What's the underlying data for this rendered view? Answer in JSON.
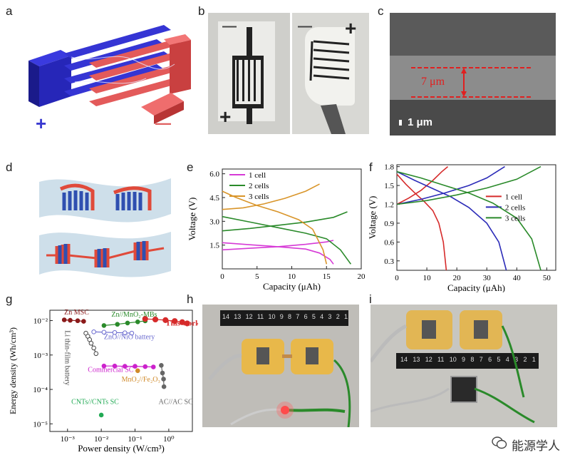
{
  "panel_labels": {
    "a": "a",
    "b": "b",
    "c": "c",
    "d": "d",
    "e": "e",
    "f": "f",
    "g": "g",
    "h": "h",
    "i": "i"
  },
  "panel_a": {
    "plus": "+",
    "minus": "—"
  },
  "panel_b": {
    "left_minus": "—",
    "left_plus": "+",
    "right_minus": "—",
    "right_plus": "+"
  },
  "panel_c": {
    "thickness": "7 μm",
    "scale_bar": "1 μm"
  },
  "panel_h": {
    "ruler_numbers": [
      "14",
      "13",
      "12",
      "11",
      "10",
      "9",
      "8",
      "7",
      "6",
      "5",
      "4",
      "3",
      "2",
      "1"
    ]
  },
  "panel_i": {
    "ruler_numbers": [
      "14",
      "13",
      "12",
      "11",
      "10",
      "9",
      "8",
      "7",
      "6",
      "5",
      "4",
      "3",
      "2",
      "1"
    ]
  },
  "chart_data": [
    {
      "id": "e",
      "type": "line",
      "xlabel": "Capacity (μAh)",
      "ylabel": "Voltage (V)",
      "xlim": [
        0,
        20
      ],
      "ylim": [
        0,
        6.3
      ],
      "xticks": [
        "0",
        "5",
        "10",
        "15",
        "20"
      ],
      "yticks": [
        "1.5",
        "3.0",
        "4.5",
        "6.0"
      ],
      "legend": "top-left",
      "series": [
        {
          "name": "1 cell",
          "color": "#d63ad6",
          "charge": [
            [
              0,
              1.2
            ],
            [
              4,
              1.3
            ],
            [
              8,
              1.4
            ],
            [
              12,
              1.55
            ],
            [
              15,
              1.7
            ],
            [
              16,
              1.8
            ]
          ],
          "discharge": [
            [
              0,
              1.65
            ],
            [
              4,
              1.52
            ],
            [
              8,
              1.4
            ],
            [
              12,
              1.25
            ],
            [
              14,
              1.0
            ],
            [
              15.5,
              0.6
            ],
            [
              16,
              0.3
            ]
          ]
        },
        {
          "name": "2 cells",
          "color": "#2a8a2a",
          "charge": [
            [
              0,
              2.4
            ],
            [
              4,
              2.55
            ],
            [
              8,
              2.75
            ],
            [
              12,
              2.95
            ],
            [
              16,
              3.25
            ],
            [
              18,
              3.6
            ]
          ],
          "discharge": [
            [
              0,
              3.3
            ],
            [
              4,
              2.95
            ],
            [
              8,
              2.6
            ],
            [
              12,
              2.25
            ],
            [
              15,
              1.9
            ],
            [
              17,
              1.2
            ],
            [
              18.5,
              0.3
            ]
          ]
        },
        {
          "name": "3 cells",
          "color": "#d9952a",
          "charge": [
            [
              0,
              3.75
            ],
            [
              3,
              3.85
            ],
            [
              6,
              4.1
            ],
            [
              9,
              4.45
            ],
            [
              12,
              4.9
            ],
            [
              14,
              5.35
            ]
          ],
          "discharge": [
            [
              0,
              4.9
            ],
            [
              2,
              4.5
            ],
            [
              5,
              4.0
            ],
            [
              8,
              3.6
            ],
            [
              11,
              3.1
            ],
            [
              13,
              2.5
            ],
            [
              14.5,
              1.2
            ],
            [
              15,
              0.3
            ]
          ]
        }
      ]
    },
    {
      "id": "f",
      "type": "line",
      "xlabel": "Capacity (μAh)",
      "ylabel": "Voltage (V)",
      "xlim": [
        0,
        53
      ],
      "ylim": [
        0.15,
        1.83
      ],
      "xticks": [
        "0",
        "10",
        "20",
        "30",
        "40",
        "50"
      ],
      "yticks": [
        "0.3",
        "0.6",
        "0.9",
        "1.2",
        "1.5",
        "1.8"
      ],
      "legend": "right",
      "series": [
        {
          "name": "1 cell",
          "color": "#d62b2b",
          "charge": [
            [
              0,
              1.2
            ],
            [
              4,
              1.3
            ],
            [
              8,
              1.42
            ],
            [
              12,
              1.58
            ],
            [
              15,
              1.72
            ],
            [
              17,
              1.8
            ]
          ],
          "discharge": [
            [
              0,
              1.68
            ],
            [
              3,
              1.52
            ],
            [
              6,
              1.38
            ],
            [
              9,
              1.25
            ],
            [
              12,
              1.1
            ],
            [
              14,
              0.9
            ],
            [
              15.5,
              0.6
            ],
            [
              16.5,
              0.15
            ]
          ]
        },
        {
          "name": "2 cells",
          "color": "#2b2bb8",
          "charge": [
            [
              0,
              1.2
            ],
            [
              8,
              1.28
            ],
            [
              16,
              1.38
            ],
            [
              24,
              1.5
            ],
            [
              30,
              1.62
            ],
            [
              36,
              1.8
            ]
          ],
          "discharge": [
            [
              0,
              1.72
            ],
            [
              6,
              1.58
            ],
            [
              12,
              1.45
            ],
            [
              18,
              1.32
            ],
            [
              24,
              1.15
            ],
            [
              30,
              0.9
            ],
            [
              34,
              0.6
            ],
            [
              36.5,
              0.15
            ]
          ]
        },
        {
          "name": "3 cells",
          "color": "#2a8a2a",
          "charge": [
            [
              0,
              1.2
            ],
            [
              10,
              1.26
            ],
            [
              20,
              1.35
            ],
            [
              30,
              1.46
            ],
            [
              40,
              1.6
            ],
            [
              48,
              1.8
            ]
          ],
          "discharge": [
            [
              0,
              1.72
            ],
            [
              8,
              1.62
            ],
            [
              16,
              1.5
            ],
            [
              24,
              1.38
            ],
            [
              32,
              1.22
            ],
            [
              40,
              0.98
            ],
            [
              45,
              0.65
            ],
            [
              48,
              0.15
            ]
          ]
        }
      ]
    },
    {
      "id": "g",
      "type": "scatter",
      "xlabel": "Power density (W/cm³)",
      "ylabel": "Energy density (Wh/cm³)",
      "xscale": "log",
      "yscale": "log",
      "xlim": [
        0.0003,
        5
      ],
      "ylim": [
        6e-06,
        0.02
      ],
      "xticks": [
        "10⁻³",
        "10⁻²",
        "10⁻¹",
        "10⁰"
      ],
      "yticks": [
        "10⁻⁵",
        "10⁻⁴",
        "10⁻³",
        "10⁻²"
      ],
      "series": [
        {
          "name": "Zn MSC",
          "color": "#8b1a1a",
          "x": [
            0.0008,
            0.0012,
            0.002,
            0.003
          ],
          "y": [
            0.0105,
            0.0102,
            0.0099,
            0.0095
          ]
        },
        {
          "name": "Zn//MnO₂-MBs",
          "color": "#2a8a2a",
          "x": [
            0.012,
            0.03,
            0.06,
            0.12,
            0.2
          ],
          "y": [
            0.0072,
            0.0078,
            0.0085,
            0.0092,
            0.0098
          ]
        },
        {
          "name": "This work",
          "color": "#d62b2b",
          "x": [
            0.2,
            0.4,
            0.8,
            1.5,
            2.5,
            3.5
          ],
          "y": [
            0.0112,
            0.0108,
            0.0103,
            0.0097,
            0.009,
            0.0083
          ]
        },
        {
          "name": "Li thin-film battery",
          "color": "#444444",
          "x": [
            0.0035,
            0.004,
            0.0045,
            0.005,
            0.006,
            0.007
          ],
          "y": [
            0.0043,
            0.0035,
            0.0028,
            0.0022,
            0.0016,
            0.0011
          ]
        },
        {
          "name": "ZnO//NiO battery",
          "color": "#6a6acf",
          "x": [
            0.006,
            0.012,
            0.025,
            0.05,
            0.08
          ],
          "y": [
            0.0047,
            0.0046,
            0.0045,
            0.0044,
            0.0043
          ]
        },
        {
          "name": "Commercial SC",
          "color": "#cc22cc",
          "x": [
            0.012,
            0.025,
            0.05,
            0.1,
            0.2,
            0.35
          ],
          "y": [
            0.00048,
            0.00048,
            0.00047,
            0.00047,
            0.00046,
            0.00045
          ]
        },
        {
          "name": "MnO₂//Fe₂O₃",
          "color": "#d08a2a",
          "x": [
            0.12
          ],
          "y": [
            0.00035
          ]
        },
        {
          "name": "AC//AC SC",
          "color": "#666666",
          "x": [
            0.6,
            0.65,
            0.7,
            0.72
          ],
          "y": [
            0.0005,
            0.0003,
            0.0002,
            0.00012
          ]
        },
        {
          "name": "CNTs//CNTs SC",
          "color": "#22aa55",
          "x": [
            0.01
          ],
          "y": [
            1.8e-05
          ]
        }
      ],
      "annotations": [
        "Zn MSC",
        "Zn//MnO₂-MBs",
        "This work",
        "Li thin-film battery",
        "ZnO//NiO battery",
        "Commercial SC",
        "MnO₂//Fe₂O₃",
        "CNTs//CNTs SC",
        "AC//AC SC"
      ]
    }
  ],
  "watermark": {
    "text": "能源学人"
  }
}
